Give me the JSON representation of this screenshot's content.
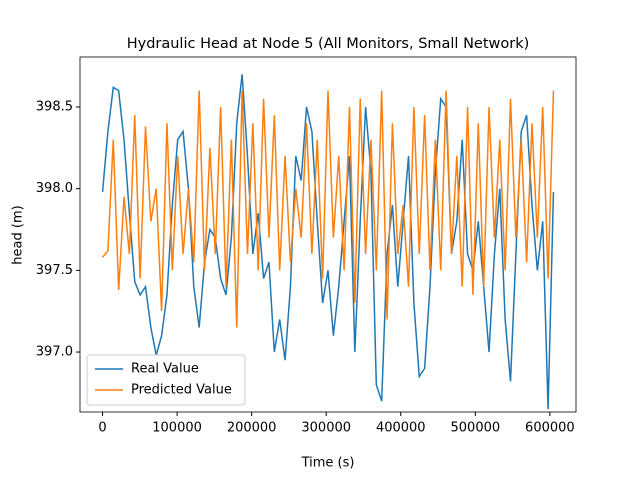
{
  "chart_data": {
    "type": "line",
    "title": "Hydraulic Head at Node 5 (All Monitors, Small Network)",
    "x_label": "Time (s)",
    "y_label": "head (m)",
    "x": [
      0,
      7200,
      14400,
      21600,
      28800,
      36000,
      43200,
      50400,
      57600,
      64800,
      72000,
      79200,
      86400,
      93600,
      100800,
      108000,
      115200,
      122400,
      129600,
      136800,
      144000,
      151200,
      158400,
      165600,
      172800,
      180000,
      187200,
      194400,
      201600,
      208800,
      216000,
      223200,
      230400,
      237600,
      244800,
      252000,
      259200,
      266400,
      273600,
      280800,
      288000,
      295200,
      302400,
      309600,
      316800,
      324000,
      331200,
      338400,
      345600,
      352800,
      360000,
      367200,
      374400,
      381600,
      388800,
      396000,
      403200,
      410400,
      417600,
      424800,
      432000,
      439200,
      446400,
      453600,
      460800,
      468000,
      475200,
      482400,
      489600,
      496800,
      504000,
      511200,
      518400,
      525600,
      532800,
      540000,
      547200,
      554400,
      561600,
      568800,
      576000,
      583200,
      590400,
      597600,
      604800
    ],
    "series": [
      {
        "name": "Real Value",
        "color": "#1f77b4",
        "values": [
          397.98,
          398.35,
          398.62,
          398.6,
          398.3,
          397.85,
          397.43,
          397.35,
          397.4,
          397.15,
          396.98,
          397.1,
          397.35,
          397.9,
          398.3,
          398.35,
          398.0,
          397.4,
          397.15,
          397.55,
          397.75,
          397.7,
          397.45,
          397.35,
          397.7,
          398.4,
          398.7,
          398.2,
          397.6,
          397.85,
          397.45,
          397.55,
          397.0,
          397.2,
          396.95,
          397.4,
          398.2,
          398.05,
          398.5,
          398.35,
          397.8,
          397.3,
          397.5,
          397.1,
          397.4,
          397.8,
          398.2,
          397.0,
          397.8,
          398.5,
          398.1,
          396.8,
          396.7,
          397.6,
          397.9,
          397.4,
          397.8,
          398.2,
          397.3,
          396.85,
          396.9,
          397.4,
          398.1,
          398.55,
          398.5,
          397.6,
          397.8,
          398.3,
          397.6,
          397.5,
          397.8,
          397.4,
          397.0,
          397.6,
          398.0,
          397.2,
          396.82,
          397.6,
          398.35,
          398.45,
          397.9,
          397.5,
          397.8,
          396.65,
          397.98
        ]
      },
      {
        "name": "Predicted Value",
        "color": "#ff7f0e",
        "values": [
          397.58,
          397.62,
          398.3,
          397.38,
          397.95,
          397.6,
          398.45,
          397.45,
          398.38,
          397.8,
          398.0,
          397.25,
          398.4,
          397.5,
          398.2,
          397.6,
          398.0,
          397.55,
          398.6,
          397.5,
          398.25,
          397.6,
          398.5,
          397.4,
          398.3,
          397.15,
          398.6,
          397.6,
          398.4,
          397.5,
          398.55,
          397.7,
          398.45,
          397.5,
          398.2,
          397.55,
          398.0,
          397.7,
          398.4,
          397.6,
          398.3,
          397.45,
          398.6,
          397.7,
          398.2,
          397.5,
          398.5,
          397.3,
          398.55,
          397.6,
          398.3,
          397.5,
          398.6,
          397.2,
          398.4,
          397.6,
          397.9,
          397.4,
          398.5,
          397.6,
          398.45,
          397.5,
          398.3,
          397.5,
          398.6,
          397.6,
          398.2,
          397.4,
          398.5,
          397.35,
          398.4,
          397.4,
          398.5,
          397.7,
          398.3,
          397.5,
          398.55,
          397.7,
          398.3,
          397.55,
          398.4,
          397.7,
          398.5,
          397.45,
          398.6
        ]
      }
    ],
    "xlim": [
      -30240,
      635040
    ],
    "xticks": [
      0,
      100000,
      200000,
      300000,
      400000,
      500000,
      600000
    ],
    "ylim": [
      396.633,
      398.806
    ],
    "yticks": [
      {
        "value": 397,
        "label": "397.0"
      },
      397.5,
      {
        "value": 398,
        "label": "398.0"
      },
      398.5
    ],
    "legend": "lower left"
  }
}
